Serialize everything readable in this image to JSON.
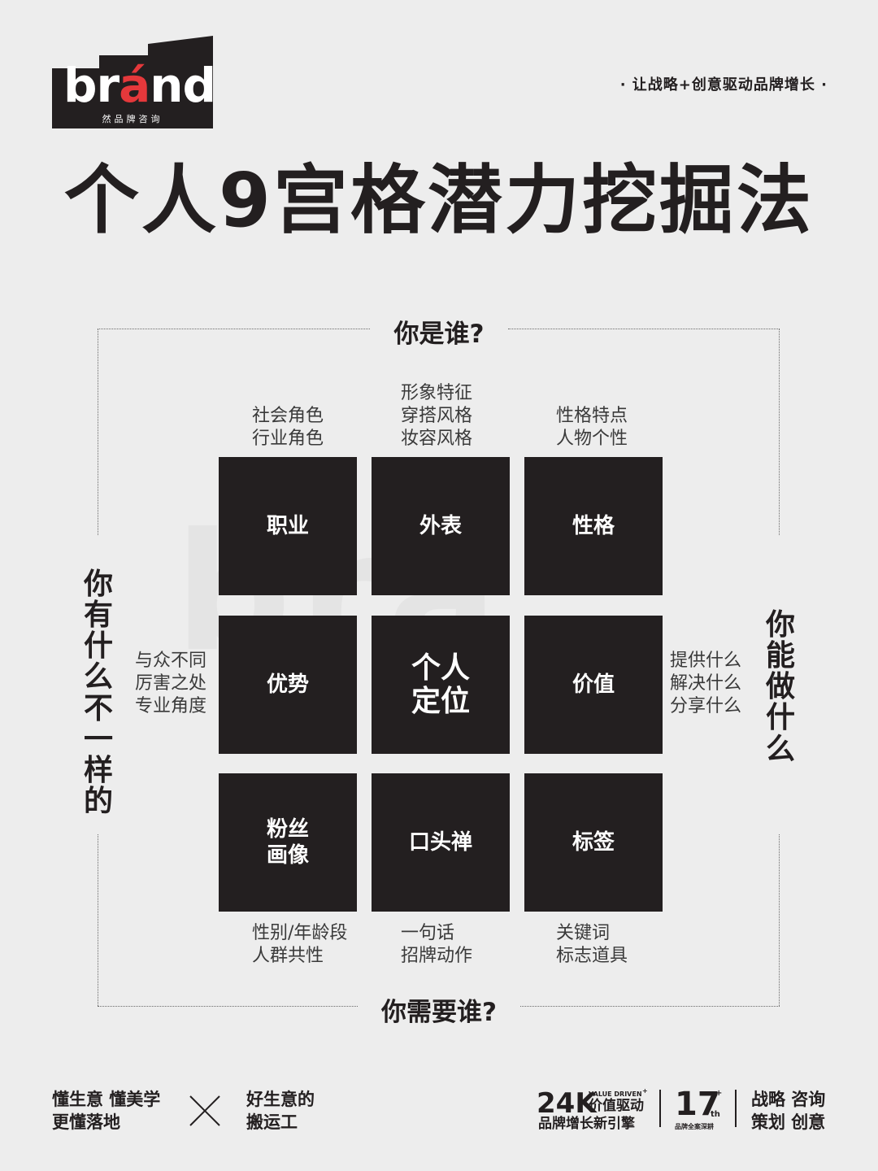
{
  "brand": {
    "logo_text_pre": "br",
    "logo_text_accent": "á",
    "logo_text_post": "nd",
    "logo_subtitle": "然品牌咨询",
    "accent_color": "#e5383b",
    "tagline": "· 让战略+创意驱动品牌增长 ·"
  },
  "title": "个人9宫格潜力挖掘法",
  "questions": {
    "top": "你是谁?",
    "bottom": "你需要谁?",
    "left": "你有什么不一样的",
    "right": "你能做什么"
  },
  "watermark": "bra",
  "grid": {
    "cells": [
      {
        "label": "职业"
      },
      {
        "label": "外表"
      },
      {
        "label": "性格"
      },
      {
        "label": "优势"
      },
      {
        "label": "个人\n定位"
      },
      {
        "label": "价值"
      },
      {
        "label": "粉丝\n画像"
      },
      {
        "label": "口头禅"
      },
      {
        "label": "标签"
      }
    ],
    "cell_color": "#231f20"
  },
  "hints": {
    "career": [
      "社会角色",
      "行业角色"
    ],
    "appearance": [
      "形象特征",
      "穿搭风格",
      "妆容风格"
    ],
    "personality": [
      "性格特点",
      "人物个性"
    ],
    "advantage": [
      "与众不同",
      "厉害之处",
      "专业角度"
    ],
    "value": [
      "提供什么",
      "解决什么",
      "分享什么"
    ],
    "fans": [
      "性别/年龄段",
      "人群共性"
    ],
    "catchphrase": [
      "一句话",
      "招牌动作"
    ],
    "tags": [
      "关键词",
      "标志道具"
    ]
  },
  "footer": {
    "left_line1": "懂生意 懂美学",
    "left_line2": "更懂落地",
    "cross_icon": "cross-icon",
    "mid_line1": "好生意的",
    "mid_line2": "搬运工",
    "stat1_num": "24K",
    "stat1_small": "VALUE DRIVEN",
    "stat1_plus": "+",
    "stat1_label": "价值驱动",
    "stat1_sub": "品牌增长新引擎",
    "stat2_num": "17",
    "stat2_sup": "+",
    "stat2_th": "th",
    "stat2_sub": "品牌全案深耕",
    "right_line1": "战略 咨询",
    "right_line2": "策划 创意"
  }
}
